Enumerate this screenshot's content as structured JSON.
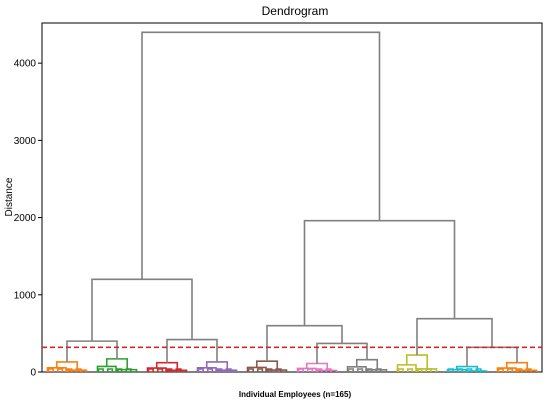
{
  "chart_data": {
    "type": "dendrogram",
    "title": "Dendrogram",
    "xlabel": "Individual Employees (n=165)",
    "ylabel": "Distance",
    "ylim": [
      0,
      4520
    ],
    "yticks": [
      0,
      1000,
      2000,
      3000,
      4000
    ],
    "cut_height": 320,
    "cut_line_color": "#d62728",
    "above_cut_color": "#808080",
    "grid": false,
    "merges": [
      {
        "name": "root",
        "height": 4400,
        "left": "A",
        "right": "B"
      },
      {
        "name": "A",
        "height": 1200,
        "left": "A1",
        "right": "A2"
      },
      {
        "name": "B",
        "height": 1960,
        "left": "B1",
        "right": "B2"
      },
      {
        "name": "A1",
        "height": 400,
        "left": "c-orange",
        "right": "c-green"
      },
      {
        "name": "A2",
        "height": 420,
        "left": "c-red",
        "right": "c-purple"
      },
      {
        "name": "B1",
        "height": 600,
        "left": "c-brown",
        "right": "B1b"
      },
      {
        "name": "B1b",
        "height": 370,
        "left": "c-pink",
        "right": "c-gray"
      },
      {
        "name": "B2",
        "height": 690,
        "left": "c-olive",
        "right": "B2b"
      },
      {
        "name": "B2b",
        "height": 320,
        "left": "c-cyan",
        "right": "c-orange2"
      }
    ],
    "clusters": [
      {
        "name": "c-orange",
        "color": "#ff7f0e",
        "height": 130
      },
      {
        "name": "c-green",
        "color": "#2ca02c",
        "height": 170
      },
      {
        "name": "c-red",
        "color": "#d62728",
        "height": 120
      },
      {
        "name": "c-purple",
        "color": "#9467bd",
        "height": 130
      },
      {
        "name": "c-brown",
        "color": "#8c564b",
        "height": 140
      },
      {
        "name": "c-pink",
        "color": "#e377c2",
        "height": 110
      },
      {
        "name": "c-gray",
        "color": "#7f7f7f",
        "height": 160
      },
      {
        "name": "c-olive",
        "color": "#bcbd22",
        "height": 220
      },
      {
        "name": "c-cyan",
        "color": "#17becf",
        "height": 70
      },
      {
        "name": "c-orange2",
        "color": "#ff7f0e",
        "height": 120
      }
    ]
  }
}
